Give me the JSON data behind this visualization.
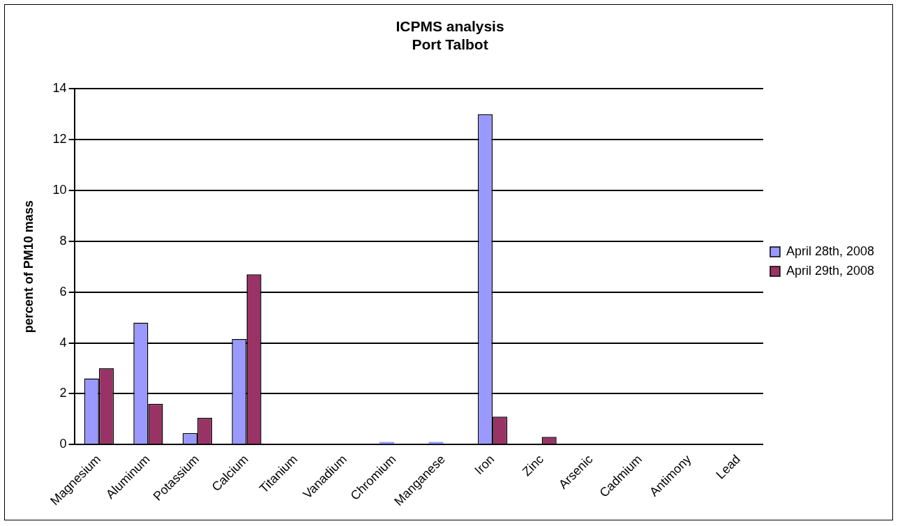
{
  "chart_data": {
    "type": "bar",
    "title": "ICPMS analysis\nPort Talbot",
    "ylabel": "percent of PM10 mass",
    "categories": [
      "Magnesium",
      "Aluminum",
      "Potassium",
      "Calcium",
      "Titanium",
      "Vanadium",
      "Chromium",
      "Manganese",
      "Iron",
      "Zinc",
      "Arsenic",
      "Cadmium",
      "Antimony",
      "Lead"
    ],
    "series": [
      {
        "name": "April 28th, 2008",
        "color": "#9999ff",
        "values": [
          2.6,
          4.8,
          0.45,
          4.15,
          null,
          0,
          0.1,
          0.1,
          13.0,
          null,
          0,
          0,
          0,
          0
        ]
      },
      {
        "name": "April 29th, 2008",
        "color": "#993366",
        "values": [
          3.0,
          1.6,
          1.05,
          6.7,
          null,
          0,
          0,
          0,
          1.1,
          0.3,
          0,
          0,
          0,
          null
        ]
      }
    ],
    "ylim": [
      0,
      14
    ],
    "yticks": [
      0,
      2,
      4,
      6,
      8,
      10,
      12,
      14
    ],
    "grid": "y",
    "legend": "right"
  }
}
